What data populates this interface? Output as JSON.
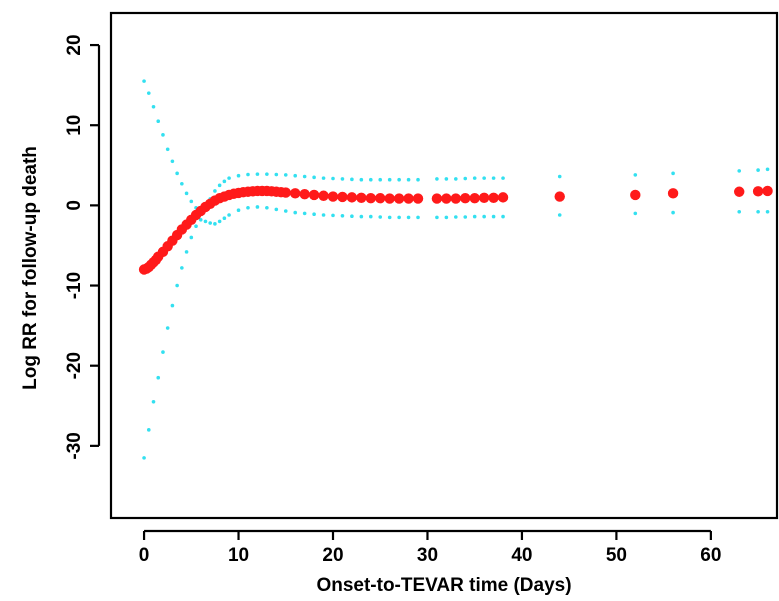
{
  "chart_data": {
    "type": "scatter",
    "title": "",
    "xlabel": "Onset-to-TEVAR time (Days)",
    "ylabel": "Log RR for follow-up death",
    "xlim": [
      -3.5,
      67
    ],
    "ylim": [
      -39,
      24
    ],
    "x_ticks": [
      0,
      10,
      20,
      30,
      40,
      50,
      60
    ],
    "y_ticks": [
      -30,
      -20,
      -10,
      0,
      10,
      20
    ],
    "x_tick_labels": [
      "0",
      "10",
      "20",
      "30",
      "40",
      "50",
      "60"
    ],
    "y_tick_labels": [
      "-30",
      "-20",
      "-10",
      "0",
      "10",
      "20"
    ],
    "grid": false,
    "legend": "none",
    "colors": {
      "estimate": "#ff1a1a",
      "ci": "#33e0f0"
    },
    "series": [
      {
        "role": "estimate",
        "x": [
          0,
          0.25,
          0.5,
          0.75,
          1,
          1.25,
          1.5,
          2,
          2.5,
          3,
          3.5,
          4,
          4.5,
          5,
          5.5,
          6,
          6.5,
          7,
          7.5,
          8,
          8.5,
          9,
          9.5,
          10,
          10.5,
          11,
          11.5,
          12,
          12.5,
          13,
          13.5,
          14,
          14.5,
          15,
          16,
          17,
          18,
          19,
          20,
          21,
          22,
          23,
          24,
          25,
          26,
          27,
          28,
          29,
          31,
          32,
          33,
          34,
          35,
          36,
          37,
          38,
          44,
          52,
          56,
          63,
          65,
          66
        ],
        "y": [
          -8.0,
          -7.9,
          -7.7,
          -7.4,
          -7.1,
          -6.8,
          -6.4,
          -5.8,
          -5.1,
          -4.4,
          -3.7,
          -3.0,
          -2.4,
          -1.8,
          -1.2,
          -0.7,
          -0.2,
          0.2,
          0.6,
          0.9,
          1.1,
          1.3,
          1.45,
          1.55,
          1.65,
          1.7,
          1.75,
          1.8,
          1.8,
          1.8,
          1.75,
          1.7,
          1.65,
          1.6,
          1.5,
          1.4,
          1.3,
          1.2,
          1.1,
          1.05,
          1.0,
          0.95,
          0.9,
          0.9,
          0.85,
          0.85,
          0.85,
          0.85,
          0.85,
          0.85,
          0.85,
          0.9,
          0.9,
          0.95,
          0.95,
          1.0,
          1.1,
          1.3,
          1.5,
          1.7,
          1.75,
          1.8
        ]
      },
      {
        "role": "upper-ci",
        "x": [
          0,
          0.5,
          1,
          1.5,
          2,
          2.5,
          3,
          3.5,
          4,
          4.5,
          5,
          5.5,
          6,
          6.5,
          7,
          7.5,
          8,
          8.5,
          9,
          10,
          11,
          12,
          13,
          14,
          15,
          16,
          17,
          18,
          19,
          20,
          21,
          22,
          23,
          24,
          25,
          26,
          27,
          28,
          29,
          31,
          32,
          33,
          34,
          35,
          36,
          37,
          38,
          44,
          52,
          56,
          63,
          65,
          66
        ],
        "y": [
          15.5,
          14,
          12.3,
          10.5,
          8.8,
          7,
          5.5,
          4,
          2.7,
          1.5,
          0.5,
          -0.3,
          -0.8,
          -0.2,
          0.8,
          1.8,
          2.5,
          3.0,
          3.4,
          3.7,
          3.85,
          3.9,
          3.9,
          3.85,
          3.8,
          3.7,
          3.6,
          3.5,
          3.4,
          3.35,
          3.3,
          3.25,
          3.2,
          3.2,
          3.2,
          3.2,
          3.2,
          3.2,
          3.2,
          3.3,
          3.3,
          3.3,
          3.35,
          3.4,
          3.4,
          3.4,
          3.4,
          3.6,
          3.8,
          4.0,
          4.3,
          4.4,
          4.5
        ]
      },
      {
        "role": "lower-ci",
        "x": [
          0,
          0.5,
          1,
          1.5,
          2,
          2.5,
          3,
          3.5,
          4,
          4.5,
          5,
          5.5,
          6,
          6.5,
          7,
          7.5,
          8,
          8.5,
          9,
          10,
          11,
          12,
          13,
          14,
          15,
          16,
          17,
          18,
          19,
          20,
          21,
          22,
          23,
          24,
          25,
          26,
          27,
          28,
          29,
          31,
          32,
          33,
          34,
          35,
          36,
          37,
          38,
          44,
          52,
          56,
          63,
          65,
          66
        ],
        "y": [
          -31.5,
          -28,
          -24.5,
          -21.5,
          -18.3,
          -15.3,
          -12.5,
          -10,
          -7.8,
          -5.8,
          -4,
          -2.6,
          -1.8,
          -2.0,
          -2.2,
          -2.3,
          -2.0,
          -1.6,
          -1.2,
          -0.6,
          -0.3,
          -0.2,
          -0.3,
          -0.5,
          -0.7,
          -0.9,
          -1.0,
          -1.1,
          -1.2,
          -1.25,
          -1.3,
          -1.35,
          -1.4,
          -1.4,
          -1.45,
          -1.5,
          -1.5,
          -1.5,
          -1.5,
          -1.5,
          -1.5,
          -1.45,
          -1.45,
          -1.4,
          -1.4,
          -1.4,
          -1.4,
          -1.2,
          -1.0,
          -0.9,
          -0.8,
          -0.8,
          -0.8
        ]
      }
    ]
  }
}
